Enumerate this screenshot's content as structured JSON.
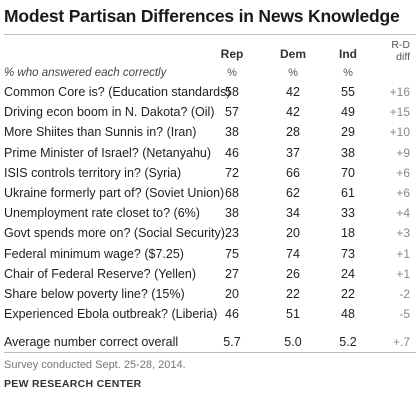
{
  "chart_data": {
    "type": "table",
    "title": "Modest Partisan Differences in News Knowledge",
    "columns": [
      "Rep",
      "Dem",
      "Ind",
      "R-D diff"
    ],
    "subtitle": "% who answered each correctly",
    "unit": "%",
    "rows": [
      {
        "question": "Common Core is? (Education standards)",
        "rep": "58",
        "dem": "42",
        "ind": "55",
        "diff": "+16"
      },
      {
        "question": "Driving econ boom in N. Dakota? (Oil)",
        "rep": "57",
        "dem": "42",
        "ind": "49",
        "diff": "+15"
      },
      {
        "question": "More Shiites than Sunnis in? (Iran)",
        "rep": "38",
        "dem": "28",
        "ind": "29",
        "diff": "+10"
      },
      {
        "question": "Prime Minister of Israel? (Netanyahu)",
        "rep": "46",
        "dem": "37",
        "ind": "38",
        "diff": "+9"
      },
      {
        "question": "ISIS controls territory in? (Syria)",
        "rep": "72",
        "dem": "66",
        "ind": "70",
        "diff": "+6"
      },
      {
        "question": "Ukraine formerly part of? (Soviet Union)",
        "rep": "68",
        "dem": "62",
        "ind": "61",
        "diff": "+6"
      },
      {
        "question": "Unemployment rate closet to? (6%)",
        "rep": "38",
        "dem": "34",
        "ind": "33",
        "diff": "+4"
      },
      {
        "question": "Govt spends more on? (Social Security)",
        "rep": "23",
        "dem": "20",
        "ind": "18",
        "diff": "+3"
      },
      {
        "question": "Federal minimum wage? ($7.25)",
        "rep": "75",
        "dem": "74",
        "ind": "73",
        "diff": "+1"
      },
      {
        "question": "Chair of Federal Reserve? (Yellen)",
        "rep": "27",
        "dem": "26",
        "ind": "24",
        "diff": "+1"
      },
      {
        "question": "Share below poverty line? (15%)",
        "rep": "20",
        "dem": "22",
        "ind": "22",
        "diff": "-2"
      },
      {
        "question": "Experienced Ebola outbreak? (Liberia)",
        "rep": "46",
        "dem": "51",
        "ind": "48",
        "diff": "-5"
      }
    ],
    "average": {
      "label": "Average number correct overall",
      "rep": "5.7",
      "dem": "5.0",
      "ind": "5.2",
      "diff": "+.7"
    }
  },
  "headers": {
    "rep": "Rep",
    "dem": "Dem",
    "ind": "Ind",
    "diff_line1": "R-D",
    "diff_line2": "diff"
  },
  "pct_label": "%",
  "footer": {
    "note": "Survey conducted Sept. 25-28, 2014.",
    "source": "PEW RESEARCH CENTER"
  }
}
